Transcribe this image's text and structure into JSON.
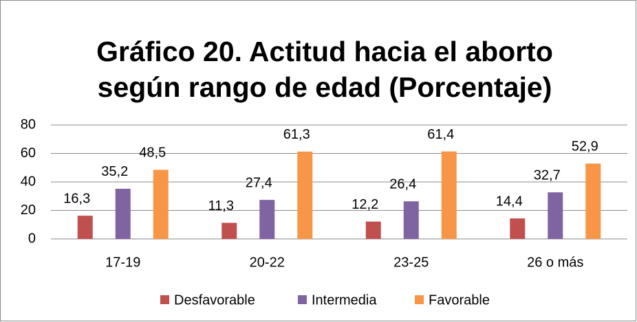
{
  "chart_data": {
    "type": "bar",
    "title": [
      "Gráfico 20. Actitud hacia el aborto",
      "según rango de edad (Porcentaje)"
    ],
    "categories": [
      "17-19",
      "20-22",
      "23-25",
      "26 o más"
    ],
    "series": [
      {
        "name": "Desfavorable",
        "color": "#c0504d",
        "values": [
          16.3,
          11.3,
          12.2,
          14.4
        ],
        "value_labels": [
          "16,3",
          "11,3",
          "12,2",
          "14,4"
        ]
      },
      {
        "name": "Intermedia",
        "color": "#8064a2",
        "values": [
          35.2,
          27.4,
          26.4,
          32.7
        ],
        "value_labels": [
          "35,2",
          "27,4",
          "26,4",
          "32,7"
        ]
      },
      {
        "name": "Favorable",
        "color": "#f79646",
        "values": [
          48.5,
          61.3,
          61.4,
          52.9
        ],
        "value_labels": [
          "48,5",
          "61,3",
          "61,4",
          "52,9"
        ]
      }
    ],
    "ylim": [
      0,
      80
    ],
    "yticks": [
      0,
      20,
      40,
      60,
      80
    ],
    "grid": true,
    "legend": "bottom"
  }
}
